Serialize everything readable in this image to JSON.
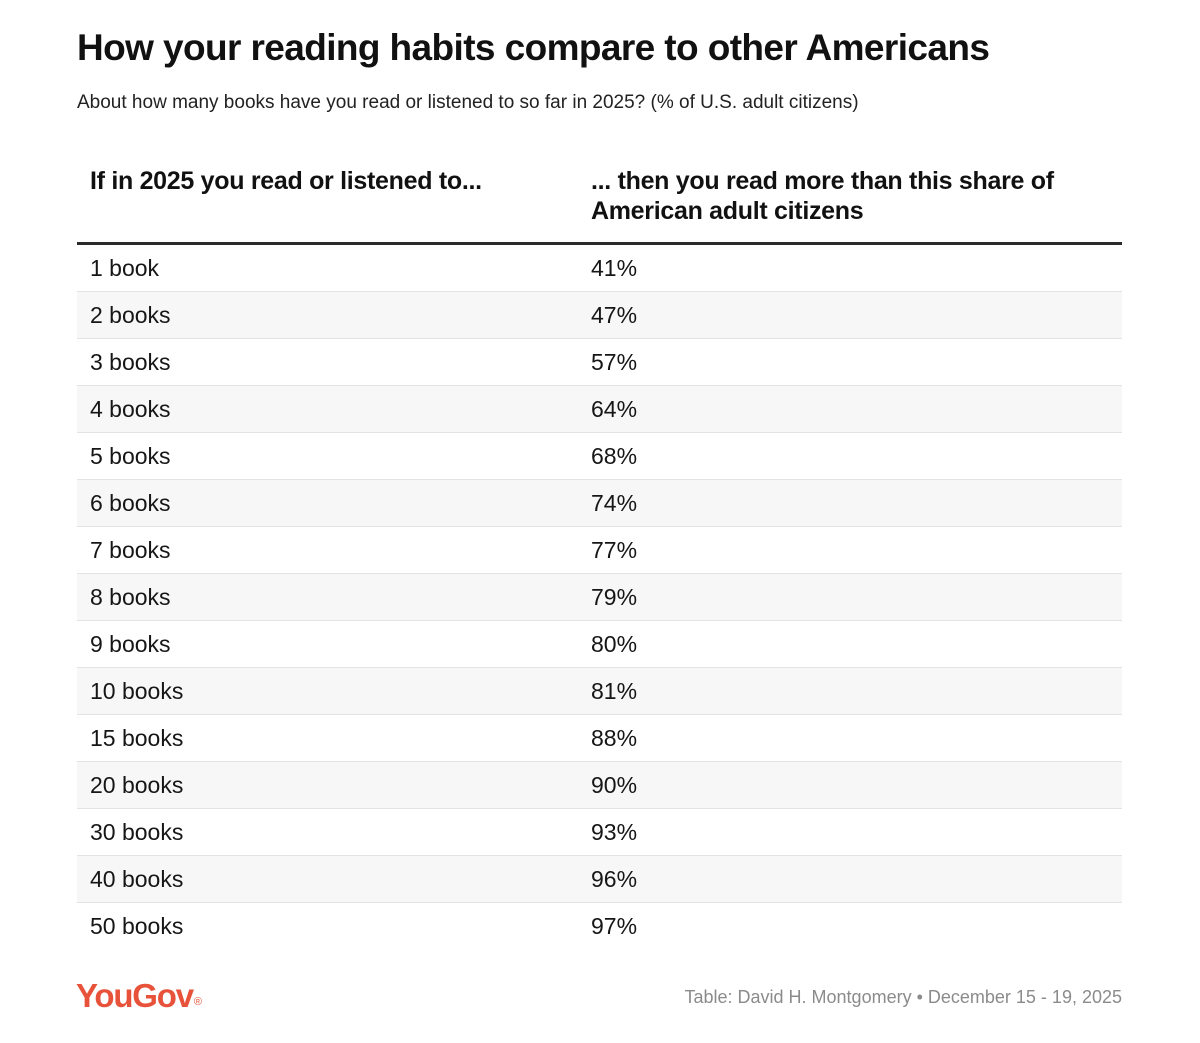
{
  "title": "How your reading habits compare to other Americans",
  "subtitle": "About how many books have you read or listened to so far in 2025? (% of U.S. adult citizens)",
  "chart_data": {
    "type": "table",
    "columns": [
      "If in 2025 you read or listened to...",
      "... then you read more than this share of American adult citizens"
    ],
    "rows": [
      [
        "1 book",
        "41%"
      ],
      [
        "2 books",
        "47%"
      ],
      [
        "3 books",
        "57%"
      ],
      [
        "4 books",
        "64%"
      ],
      [
        "5 books",
        "68%"
      ],
      [
        "6 books",
        "74%"
      ],
      [
        "7 books",
        "77%"
      ],
      [
        "8 books",
        "79%"
      ],
      [
        "9 books",
        "80%"
      ],
      [
        "10 books",
        "81%"
      ],
      [
        "15 books",
        "88%"
      ],
      [
        "20 books",
        "90%"
      ],
      [
        "30 books",
        "93%"
      ],
      [
        "40 books",
        "96%"
      ],
      [
        "50 books",
        "97%"
      ]
    ]
  },
  "footer": {
    "logo": "YouGov",
    "logo_mark": "®",
    "logo_color": "#e8523a",
    "credit": "Table: David H. Montgomery • December 15 - 19, 2025"
  }
}
